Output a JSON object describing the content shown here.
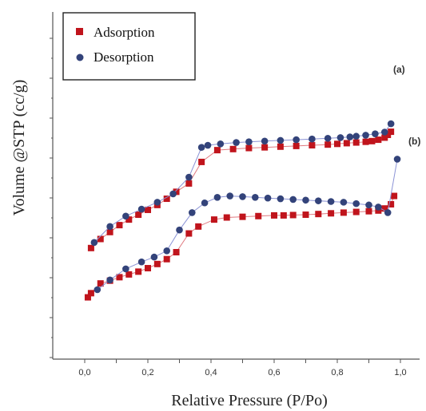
{
  "chart_data": {
    "type": "scatter",
    "xlabel": "Relative Pressure (P/Po)",
    "ylabel": "Volume @STP (cc/g)",
    "xlim": [
      0,
      1.0
    ],
    "x_ticks": [
      "0,0",
      "0,2",
      "0,4",
      "0,6",
      "0,8",
      "1,0"
    ],
    "grid": false,
    "legend": {
      "position": "top-left",
      "entries": [
        {
          "label": "Adsorption",
          "color": "#c0141c",
          "marker": "square"
        },
        {
          "label": "Desorption",
          "color": "#33437a",
          "marker": "circle"
        }
      ]
    },
    "curve_labels": [
      "(a)",
      "(b)"
    ],
    "series": [
      {
        "curve": "(a)",
        "kind": "adsorption",
        "color": "#c0141c",
        "marker": "square",
        "points": [
          [
            0.02,
            0.68
          ],
          [
            0.05,
            0.654
          ],
          [
            0.08,
            0.634
          ],
          [
            0.11,
            0.614
          ],
          [
            0.14,
            0.598
          ],
          [
            0.17,
            0.584
          ],
          [
            0.2,
            0.57
          ],
          [
            0.23,
            0.556
          ],
          [
            0.26,
            0.538
          ],
          [
            0.29,
            0.518
          ],
          [
            0.33,
            0.494
          ],
          [
            0.37,
            0.432
          ],
          [
            0.42,
            0.398
          ],
          [
            0.47,
            0.395
          ],
          [
            0.52,
            0.392
          ],
          [
            0.57,
            0.39
          ],
          [
            0.62,
            0.388
          ],
          [
            0.67,
            0.386
          ],
          [
            0.72,
            0.384
          ],
          [
            0.77,
            0.382
          ],
          [
            0.8,
            0.38
          ],
          [
            0.83,
            0.378
          ],
          [
            0.86,
            0.376
          ],
          [
            0.89,
            0.374
          ],
          [
            0.91,
            0.372
          ],
          [
            0.93,
            0.368
          ],
          [
            0.95,
            0.362
          ],
          [
            0.96,
            0.354
          ],
          [
            0.97,
            0.345
          ]
        ]
      },
      {
        "curve": "(a)",
        "kind": "desorption",
        "color": "#33437a",
        "marker": "circle",
        "points": [
          [
            0.97,
            0.322
          ],
          [
            0.95,
            0.346
          ],
          [
            0.92,
            0.351
          ],
          [
            0.89,
            0.355
          ],
          [
            0.86,
            0.358
          ],
          [
            0.84,
            0.36
          ],
          [
            0.81,
            0.362
          ],
          [
            0.77,
            0.364
          ],
          [
            0.72,
            0.366
          ],
          [
            0.67,
            0.368
          ],
          [
            0.62,
            0.37
          ],
          [
            0.57,
            0.372
          ],
          [
            0.52,
            0.374
          ],
          [
            0.48,
            0.376
          ],
          [
            0.43,
            0.38
          ],
          [
            0.39,
            0.384
          ],
          [
            0.37,
            0.39
          ],
          [
            0.33,
            0.476
          ],
          [
            0.28,
            0.524
          ],
          [
            0.23,
            0.548
          ],
          [
            0.18,
            0.568
          ],
          [
            0.13,
            0.588
          ],
          [
            0.08,
            0.618
          ],
          [
            0.03,
            0.664
          ]
        ]
      },
      {
        "curve": "(b)",
        "kind": "adsorption",
        "color": "#c0141c",
        "marker": "square",
        "points": [
          [
            0.01,
            0.822
          ],
          [
            0.02,
            0.81
          ],
          [
            0.05,
            0.782
          ],
          [
            0.08,
            0.774
          ],
          [
            0.11,
            0.764
          ],
          [
            0.14,
            0.756
          ],
          [
            0.17,
            0.748
          ],
          [
            0.2,
            0.738
          ],
          [
            0.23,
            0.726
          ],
          [
            0.26,
            0.712
          ],
          [
            0.29,
            0.692
          ],
          [
            0.33,
            0.638
          ],
          [
            0.36,
            0.618
          ],
          [
            0.41,
            0.598
          ],
          [
            0.45,
            0.592
          ],
          [
            0.5,
            0.59
          ],
          [
            0.55,
            0.588
          ],
          [
            0.6,
            0.586
          ],
          [
            0.63,
            0.586
          ],
          [
            0.66,
            0.585
          ],
          [
            0.7,
            0.584
          ],
          [
            0.74,
            0.582
          ],
          [
            0.78,
            0.58
          ],
          [
            0.82,
            0.578
          ],
          [
            0.86,
            0.576
          ],
          [
            0.9,
            0.574
          ],
          [
            0.93,
            0.572
          ],
          [
            0.95,
            0.566
          ],
          [
            0.97,
            0.554
          ],
          [
            0.98,
            0.53
          ]
        ]
      },
      {
        "curve": "(b)",
        "kind": "desorption",
        "color": "#33437a",
        "marker": "circle",
        "points": [
          [
            0.99,
            0.424
          ],
          [
            0.96,
            0.578
          ],
          [
            0.93,
            0.562
          ],
          [
            0.9,
            0.556
          ],
          [
            0.86,
            0.552
          ],
          [
            0.82,
            0.548
          ],
          [
            0.78,
            0.546
          ],
          [
            0.74,
            0.544
          ],
          [
            0.7,
            0.542
          ],
          [
            0.66,
            0.54
          ],
          [
            0.62,
            0.538
          ],
          [
            0.58,
            0.536
          ],
          [
            0.54,
            0.534
          ],
          [
            0.5,
            0.532
          ],
          [
            0.46,
            0.53
          ],
          [
            0.42,
            0.534
          ],
          [
            0.38,
            0.55
          ],
          [
            0.34,
            0.578
          ],
          [
            0.3,
            0.628
          ],
          [
            0.26,
            0.688
          ],
          [
            0.22,
            0.706
          ],
          [
            0.18,
            0.72
          ],
          [
            0.13,
            0.74
          ],
          [
            0.08,
            0.772
          ],
          [
            0.04,
            0.8
          ]
        ]
      }
    ]
  }
}
